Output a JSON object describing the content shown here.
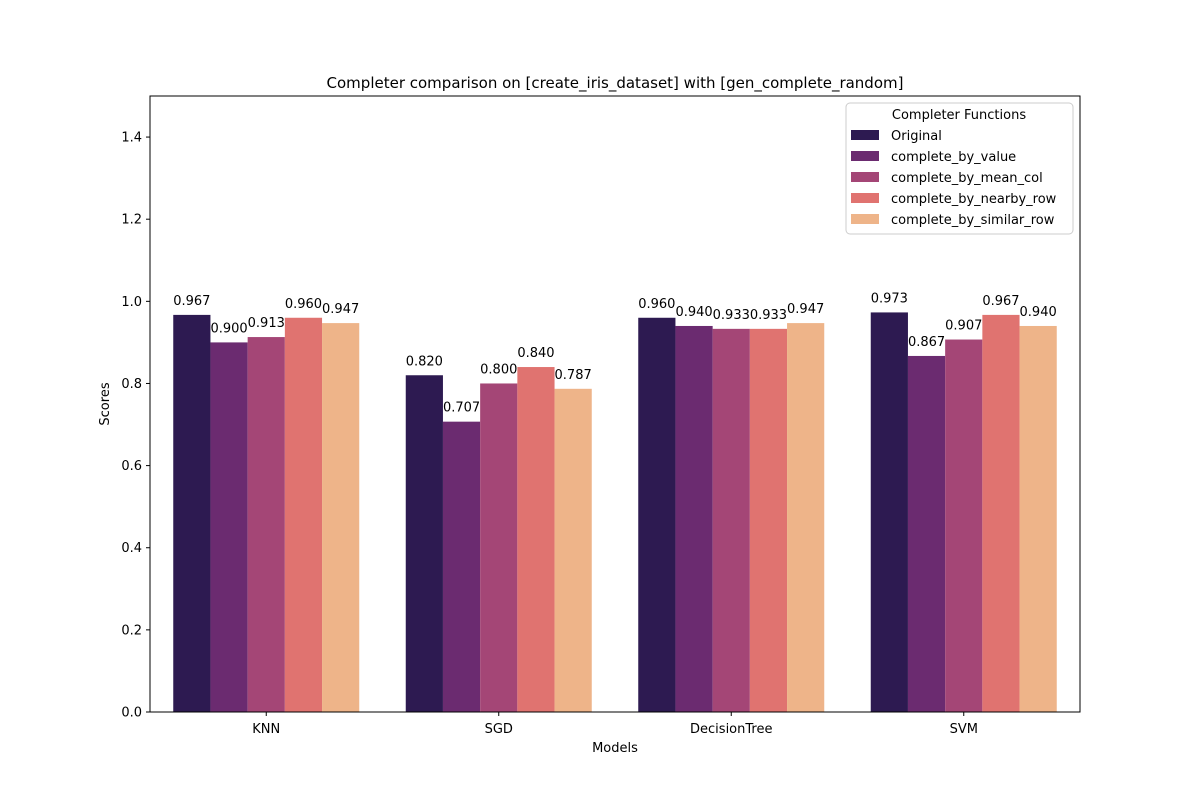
{
  "chart_data": {
    "type": "bar",
    "title": "Completer comparison on [create_iris_dataset] with [gen_complete_random]",
    "xlabel": "Models",
    "ylabel": "Scores",
    "ylim": [
      0,
      1.5
    ],
    "yticks": [
      "0.0",
      "0.2",
      "0.4",
      "0.6",
      "0.8",
      "1.0",
      "1.2",
      "1.4"
    ],
    "grid": false,
    "categories": [
      "KNN",
      "SGD",
      "DecisionTree",
      "SVM"
    ],
    "legend": {
      "title": "Completer Functions",
      "placement": "top-right"
    },
    "series": [
      {
        "name": "Original",
        "color": "#2d1a51",
        "values": [
          0.967,
          0.82,
          0.96,
          0.973
        ],
        "labels": [
          "0.967",
          "0.820",
          "0.960",
          "0.973"
        ]
      },
      {
        "name": "complete_by_value",
        "color": "#6b2b70",
        "values": [
          0.9,
          0.707,
          0.94,
          0.867
        ],
        "labels": [
          "0.900",
          "0.707",
          "0.940",
          "0.867"
        ]
      },
      {
        "name": "complete_by_mean_col",
        "color": "#a44676",
        "values": [
          0.913,
          0.8,
          0.933,
          0.907
        ],
        "labels": [
          "0.913",
          "0.800",
          "0.933",
          "0.907"
        ]
      },
      {
        "name": "complete_by_nearby_row",
        "color": "#e07370",
        "values": [
          0.96,
          0.84,
          0.933,
          0.967
        ],
        "labels": [
          "0.960",
          "0.840",
          "0.933",
          "0.967"
        ]
      },
      {
        "name": "complete_by_similar_row",
        "color": "#eeb489",
        "values": [
          0.947,
          0.787,
          0.947,
          0.94
        ],
        "labels": [
          "0.947",
          "0.787",
          "0.947",
          "0.940"
        ]
      }
    ]
  }
}
